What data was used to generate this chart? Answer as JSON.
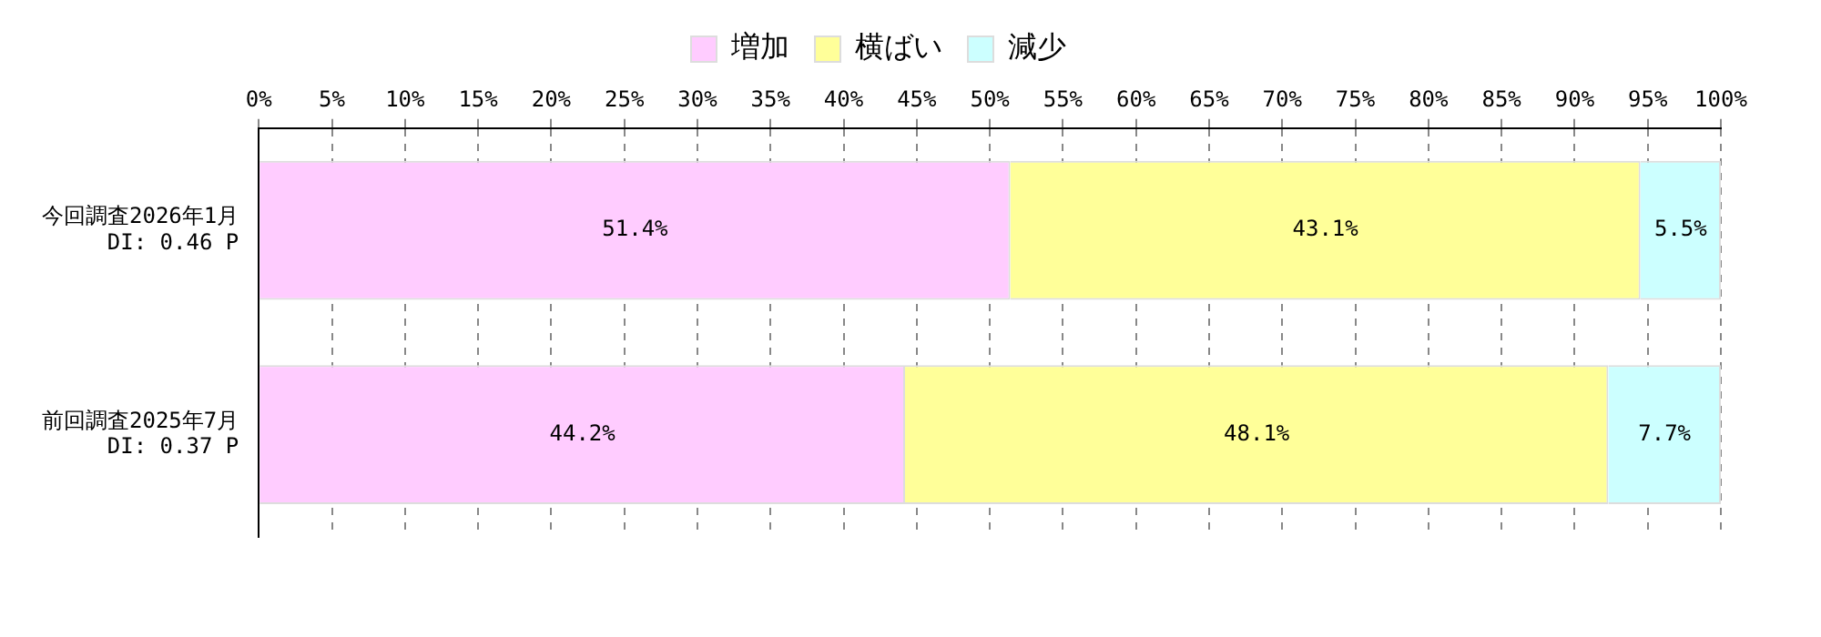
{
  "chart_data": {
    "type": "bar",
    "orientation": "horizontal",
    "stacked": true,
    "categories": [
      "今回調査2026年1月\nDI: 0.46 P",
      "前回調査2025年7月\nDI: 0.37 P"
    ],
    "series": [
      {
        "name": "増加",
        "color": "#ffccff",
        "values": [
          51.4,
          44.2
        ],
        "value_labels": [
          "51.4%",
          "44.2%"
        ]
      },
      {
        "name": "横ばい",
        "color": "#ffff99",
        "values": [
          43.1,
          48.1
        ],
        "value_labels": [
          "43.1%",
          "48.1%"
        ]
      },
      {
        "name": "減少",
        "color": "#ccffff",
        "values": [
          5.5,
          7.7
        ],
        "value_labels": [
          "5.5%",
          "7.7%"
        ]
      }
    ],
    "xlim": [
      0,
      100
    ],
    "xticks": [
      {
        "value": 0,
        "label": "0%"
      },
      {
        "value": 5,
        "label": "5%"
      },
      {
        "value": 10,
        "label": "10%"
      },
      {
        "value": 15,
        "label": "15%"
      },
      {
        "value": 20,
        "label": "20%"
      },
      {
        "value": 25,
        "label": "25%"
      },
      {
        "value": 30,
        "label": "30%"
      },
      {
        "value": 35,
        "label": "35%"
      },
      {
        "value": 40,
        "label": "40%"
      },
      {
        "value": 45,
        "label": "45%"
      },
      {
        "value": 50,
        "label": "50%"
      },
      {
        "value": 55,
        "label": "55%"
      },
      {
        "value": 60,
        "label": "60%"
      },
      {
        "value": 65,
        "label": "65%"
      },
      {
        "value": 70,
        "label": "70%"
      },
      {
        "value": 75,
        "label": "75%"
      },
      {
        "value": 80,
        "label": "80%"
      },
      {
        "value": 85,
        "label": "85%"
      },
      {
        "value": 90,
        "label": "90%"
      },
      {
        "value": 95,
        "label": "95%"
      },
      {
        "value": 100,
        "label": "100%"
      }
    ],
    "grid": "x",
    "legend": "top"
  }
}
